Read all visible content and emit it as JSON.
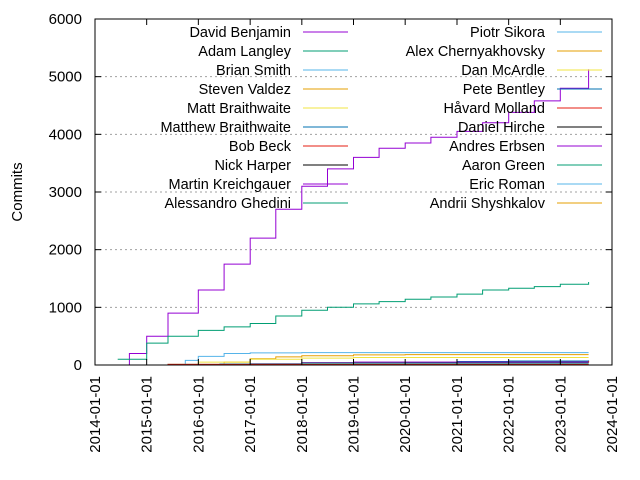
{
  "chart_data": {
    "type": "line",
    "title": "",
    "xlabel": "",
    "ylabel": "Commits",
    "xlim": [
      "2014-01-01",
      "2024-01-01"
    ],
    "ylim": [
      0,
      6000
    ],
    "x_ticks": [
      "2014-01-01",
      "2015-01-01",
      "2016-01-01",
      "2017-01-01",
      "2018-01-01",
      "2019-01-01",
      "2020-01-01",
      "2021-01-01",
      "2022-01-01",
      "2023-01-01",
      "2024-01-01"
    ],
    "y_ticks": [
      0,
      1000,
      2000,
      3000,
      4000,
      5000,
      6000
    ],
    "grid": "horizontal dotted lines at y ticks",
    "legend_placement": "top, two columns",
    "series": [
      {
        "name": "David Benjamin",
        "color": "#9400d3",
        "points": [
          [
            "2014-06-10",
            0
          ],
          [
            "2014-09-01",
            200
          ],
          [
            "2015-01-01",
            500
          ],
          [
            "2015-06-01",
            900
          ],
          [
            "2016-01-01",
            1300
          ],
          [
            "2016-07-01",
            1750
          ],
          [
            "2017-01-01",
            2200
          ],
          [
            "2017-07-01",
            2700
          ],
          [
            "2018-01-01",
            3100
          ],
          [
            "2018-07-01",
            3400
          ],
          [
            "2019-01-01",
            3600
          ],
          [
            "2019-07-01",
            3760
          ],
          [
            "2020-01-01",
            3850
          ],
          [
            "2020-07-01",
            3950
          ],
          [
            "2021-01-01",
            4050
          ],
          [
            "2021-07-01",
            4200
          ],
          [
            "2022-01-01",
            4380
          ],
          [
            "2022-07-01",
            4580
          ],
          [
            "2023-01-01",
            4800
          ],
          [
            "2023-07-20",
            5130
          ]
        ]
      },
      {
        "name": "Adam Langley",
        "color": "#009e73",
        "points": [
          [
            "2014-06-10",
            100
          ],
          [
            "2015-01-01",
            380
          ],
          [
            "2015-06-01",
            500
          ],
          [
            "2016-01-01",
            600
          ],
          [
            "2016-07-01",
            660
          ],
          [
            "2017-01-01",
            720
          ],
          [
            "2017-07-01",
            850
          ],
          [
            "2018-01-01",
            950
          ],
          [
            "2018-07-01",
            1000
          ],
          [
            "2019-01-01",
            1060
          ],
          [
            "2019-07-01",
            1100
          ],
          [
            "2020-01-01",
            1140
          ],
          [
            "2020-07-01",
            1180
          ],
          [
            "2021-01-01",
            1230
          ],
          [
            "2021-07-01",
            1300
          ],
          [
            "2022-01-01",
            1330
          ],
          [
            "2022-07-01",
            1360
          ],
          [
            "2023-01-01",
            1400
          ],
          [
            "2023-07-20",
            1440
          ]
        ]
      },
      {
        "name": "Brian Smith",
        "color": "#56b4e9",
        "points": [
          [
            "2015-06-01",
            0
          ],
          [
            "2015-10-01",
            80
          ],
          [
            "2016-01-01",
            150
          ],
          [
            "2016-07-01",
            200
          ],
          [
            "2017-01-01",
            210
          ],
          [
            "2018-01-01",
            215
          ],
          [
            "2020-01-01",
            215
          ],
          [
            "2023-07-20",
            215
          ]
        ]
      },
      {
        "name": "Steven Valdez",
        "color": "#e69f00",
        "points": [
          [
            "2016-01-01",
            0
          ],
          [
            "2016-07-01",
            50
          ],
          [
            "2017-01-01",
            110
          ],
          [
            "2017-07-01",
            140
          ],
          [
            "2018-01-01",
            160
          ],
          [
            "2019-01-01",
            175
          ],
          [
            "2020-01-01",
            180
          ],
          [
            "2021-01-01",
            180
          ],
          [
            "2023-07-20",
            180
          ]
        ]
      },
      {
        "name": "Matt Braithwaite",
        "color": "#f0e442",
        "points": [
          [
            "2015-06-01",
            0
          ],
          [
            "2016-01-01",
            50
          ],
          [
            "2017-01-01",
            100
          ],
          [
            "2018-01-01",
            120
          ],
          [
            "2019-01-01",
            130
          ],
          [
            "2023-07-20",
            130
          ]
        ]
      },
      {
        "name": "Matthew Braithwaite",
        "color": "#0072b2",
        "points": [
          [
            "2019-01-01",
            0
          ],
          [
            "2020-01-01",
            40
          ],
          [
            "2021-01-01",
            60
          ],
          [
            "2022-01-01",
            70
          ],
          [
            "2023-07-20",
            80
          ]
        ]
      },
      {
        "name": "Bob Beck",
        "color": "#e51e10",
        "points": [
          [
            "2020-01-01",
            0
          ],
          [
            "2021-01-01",
            30
          ],
          [
            "2022-01-01",
            50
          ],
          [
            "2023-07-20",
            70
          ]
        ]
      },
      {
        "name": "Nick Harper",
        "color": "#000000",
        "points": [
          [
            "2016-06-01",
            0
          ],
          [
            "2017-01-01",
            20
          ],
          [
            "2018-01-01",
            40
          ],
          [
            "2019-01-01",
            45
          ],
          [
            "2023-07-20",
            45
          ]
        ]
      },
      {
        "name": "Martin Kreichgauer",
        "color": "#9400d3",
        "points": [
          [
            "2016-06-01",
            0
          ],
          [
            "2017-01-01",
            20
          ],
          [
            "2018-01-01",
            40
          ],
          [
            "2019-01-01",
            50
          ],
          [
            "2023-07-20",
            50
          ]
        ]
      },
      {
        "name": "Alessandro Ghedini",
        "color": "#009e73",
        "points": [
          [
            "2016-01-01",
            0
          ],
          [
            "2017-01-01",
            15
          ],
          [
            "2018-01-01",
            30
          ],
          [
            "2023-07-20",
            30
          ]
        ]
      },
      {
        "name": "Piotr Sikora",
        "color": "#56b4e9",
        "points": [
          [
            "2014-09-01",
            0
          ],
          [
            "2015-06-01",
            10
          ],
          [
            "2016-06-01",
            20
          ],
          [
            "2023-07-20",
            20
          ]
        ]
      },
      {
        "name": "Alex Chernyakhovsky",
        "color": "#e69f00",
        "points": [
          [
            "2014-06-10",
            0
          ],
          [
            "2015-06-01",
            10
          ],
          [
            "2023-07-20",
            10
          ]
        ]
      },
      {
        "name": "Dan McArdle",
        "color": "#f0e442",
        "points": [
          [
            "2022-01-01",
            0
          ],
          [
            "2023-07-20",
            10
          ]
        ]
      },
      {
        "name": "Pete Bentley",
        "color": "#0072b2",
        "points": [
          [
            "2021-06-01",
            0
          ],
          [
            "2023-07-20",
            10
          ]
        ]
      },
      {
        "name": "Håvard Molland",
        "color": "#e51e10",
        "points": [
          [
            "2014-09-01",
            0
          ],
          [
            "2015-06-01",
            10
          ],
          [
            "2023-07-20",
            10
          ]
        ]
      },
      {
        "name": "Daniel Hirche",
        "color": "#000000",
        "points": [
          [
            "2021-06-01",
            0
          ],
          [
            "2023-07-20",
            5
          ]
        ]
      },
      {
        "name": "Andres Erbsen",
        "color": "#9400d3",
        "points": [
          [
            "2019-06-01",
            0
          ],
          [
            "2023-07-20",
            5
          ]
        ]
      },
      {
        "name": "Aaron Green",
        "color": "#009e73",
        "points": [
          [
            "2022-01-01",
            0
          ],
          [
            "2023-07-20",
            5
          ]
        ]
      },
      {
        "name": "Eric Roman",
        "color": "#56b4e9",
        "points": [
          [
            "2015-01-01",
            0
          ],
          [
            "2023-07-20",
            5
          ]
        ]
      },
      {
        "name": "Andrii Shyshkalov",
        "color": "#e69f00",
        "points": [
          [
            "2017-01-01",
            0
          ],
          [
            "2023-07-20",
            5
          ]
        ]
      }
    ]
  }
}
